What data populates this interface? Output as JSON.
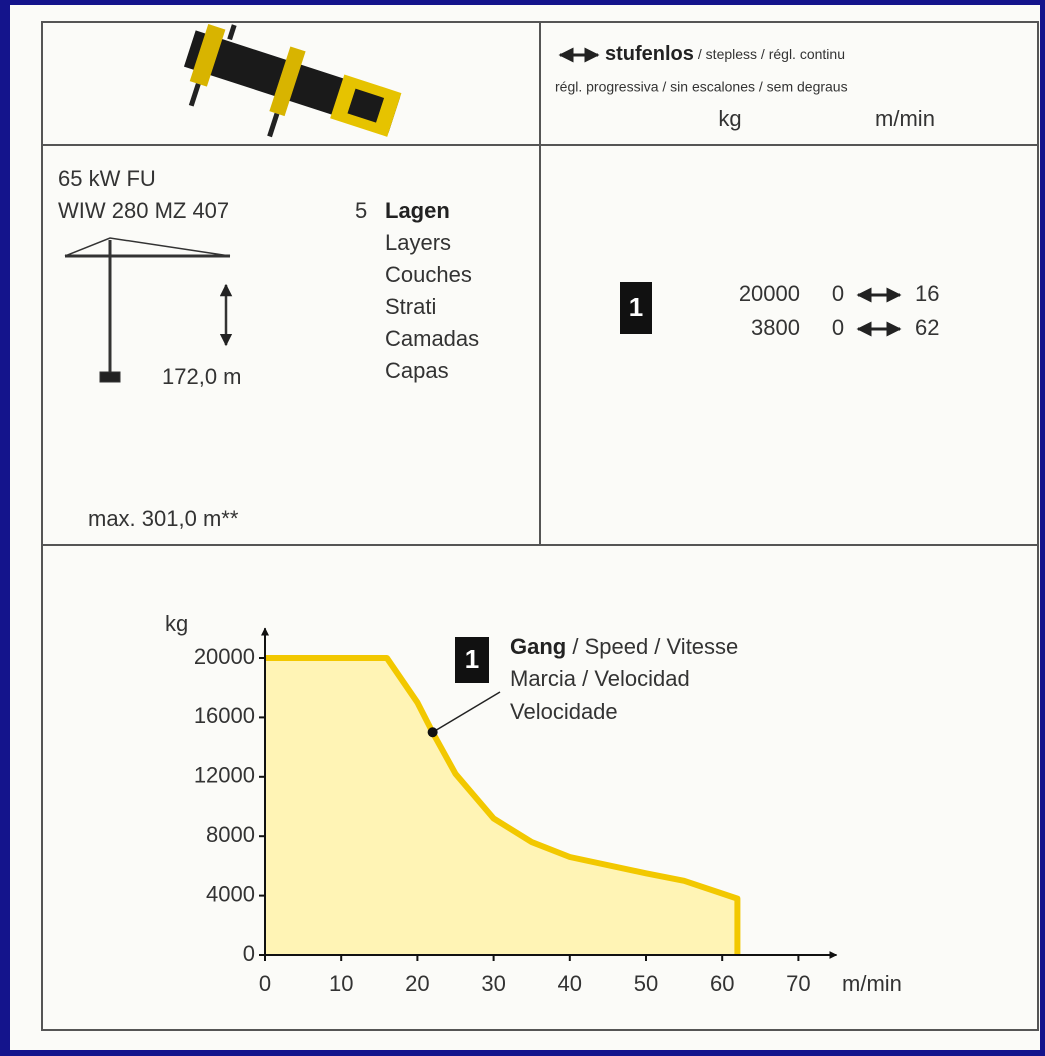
{
  "header": {
    "speed_title": "stufenlos",
    "speed_title_rest": "/ stepless / régl. continu",
    "speed_line2": "régl. progressiva / sin escalones / sem degraus",
    "unit_load": "kg",
    "unit_speed": "m/min"
  },
  "winch": {
    "power": "65 kW FU",
    "model": "WIW 280 MZ 407",
    "layers_count": "5",
    "layers": [
      "Lagen",
      "Layers",
      "Couches",
      "Strati",
      "Camadas",
      "Capas"
    ],
    "height": "172,0 m",
    "max_height": "max. 301,0 m**"
  },
  "gears": [
    {
      "gear": "1",
      "rows": [
        {
          "load": 20000,
          "speed_from": 0,
          "speed_to": 16
        },
        {
          "load": 3800,
          "speed_from": 0,
          "speed_to": 62
        }
      ]
    }
  ],
  "chart_data": {
    "type": "area",
    "y_label": "kg",
    "x_label": "m/min",
    "x": [
      0,
      16,
      20,
      22,
      25,
      30,
      35,
      40,
      50,
      55,
      62,
      62
    ],
    "values": [
      20000,
      20000,
      17000,
      15000,
      12200,
      9200,
      7600,
      6600,
      5500,
      5000,
      3800,
      0
    ],
    "color": "#f2c800",
    "fill": "#fff4b5",
    "xlim": [
      0,
      75
    ],
    "ylim": [
      0,
      22000
    ],
    "xticks": [
      0,
      10,
      20,
      30,
      40,
      50,
      60,
      70
    ],
    "yticks": [
      0,
      4000,
      8000,
      12000,
      16000,
      20000
    ],
    "marker": {
      "x": 22,
      "y": 15000
    },
    "legend": {
      "gear": "1",
      "name_bold": "Gang",
      "name_rest": " / Speed / Vitesse",
      "line2": "Marcia / Velocidad",
      "line3": "Velocidade"
    }
  }
}
